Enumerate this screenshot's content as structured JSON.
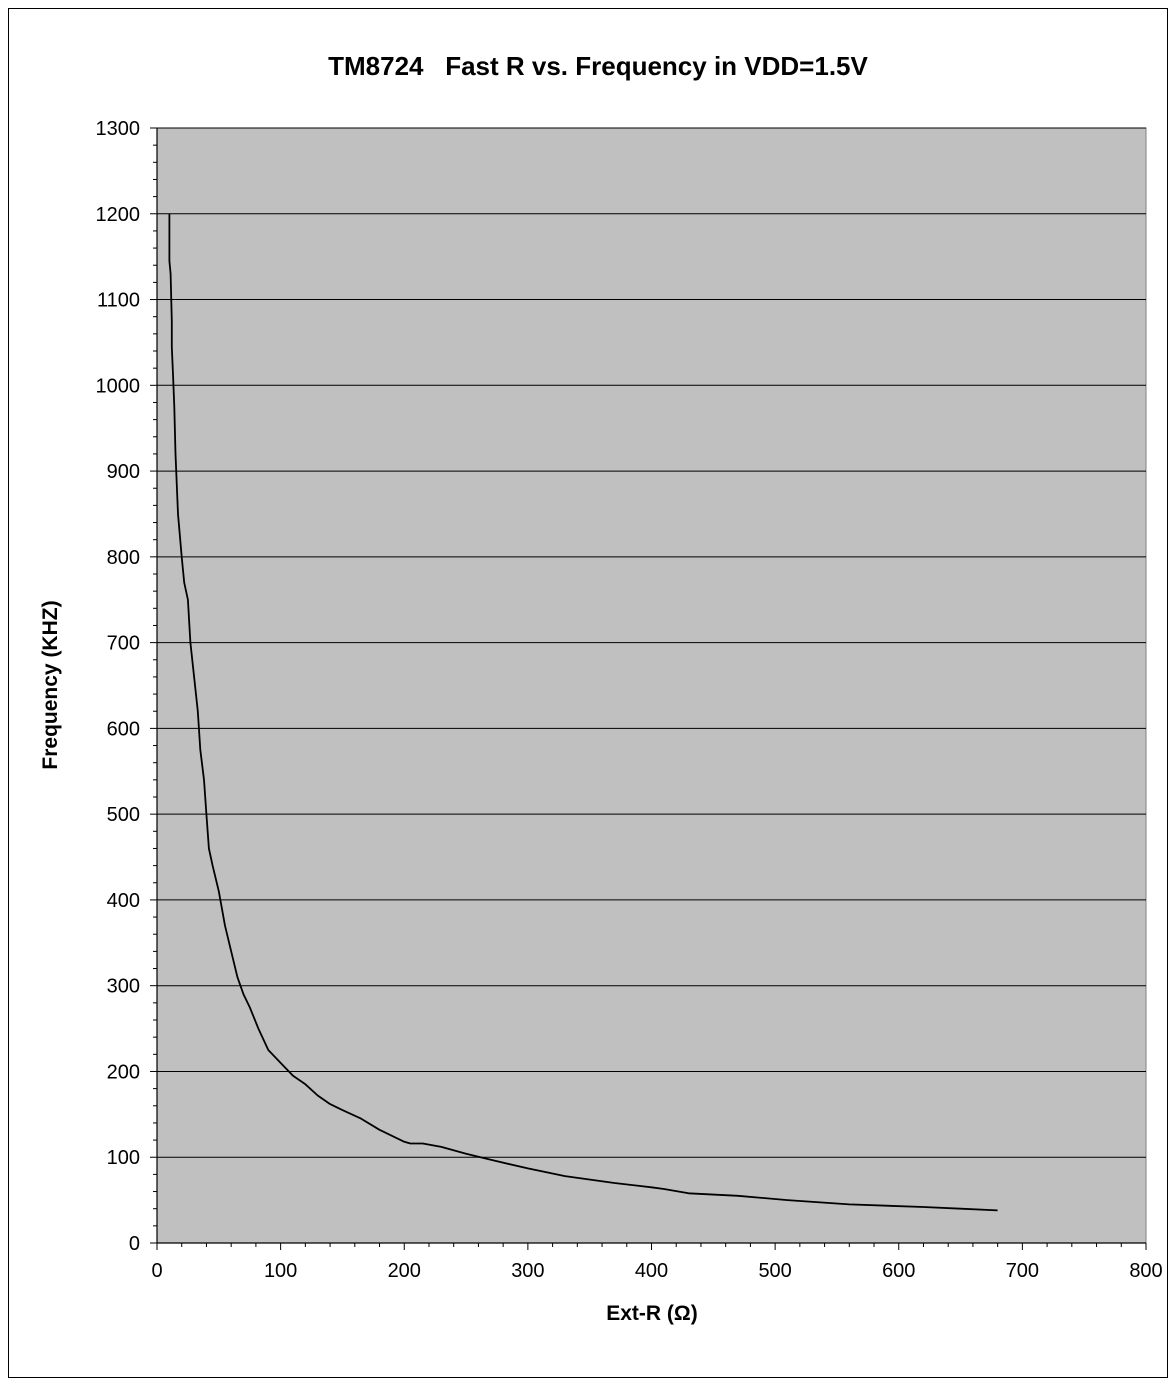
{
  "chart_data": {
    "type": "line",
    "title": "TM8724   Fast R vs. Frequency in VDD=1.5V",
    "xlabel": "Ext-R (Ω)",
    "ylabel": "Frequency (KHZ)",
    "xlim": [
      0,
      800
    ],
    "ylim": [
      0,
      1300
    ],
    "x_ticks": [
      0,
      100,
      200,
      300,
      400,
      500,
      600,
      700,
      800
    ],
    "y_ticks": [
      0,
      100,
      200,
      300,
      400,
      500,
      600,
      700,
      800,
      900,
      1000,
      1100,
      1200,
      1300
    ],
    "grid": "horizontal",
    "legend": "none",
    "colors": {
      "plot_background": "#c0c0c0",
      "line": "#000000",
      "gridline": "#000000"
    },
    "series": [
      {
        "x": [
          10,
          10,
          11,
          12,
          12,
          13,
          14,
          15,
          17,
          20,
          22,
          25,
          27,
          30,
          33,
          35,
          38,
          40,
          42,
          45,
          50,
          55,
          60,
          65,
          70,
          75,
          82,
          90,
          100,
          110,
          120,
          130,
          140,
          150,
          165,
          180,
          190,
          200,
          205,
          215,
          230,
          250,
          270,
          300,
          330,
          370,
          400,
          410,
          430,
          470,
          510,
          560,
          620,
          650,
          680
        ],
        "y": [
          1200,
          1145,
          1130,
          1075,
          1045,
          1010,
          975,
          920,
          850,
          800,
          770,
          750,
          700,
          660,
          620,
          575,
          540,
          500,
          460,
          440,
          410,
          370,
          340,
          310,
          290,
          275,
          250,
          225,
          210,
          195,
          185,
          172,
          162,
          155,
          145,
          132,
          125,
          118,
          116,
          116,
          112,
          104,
          97,
          87,
          78,
          70,
          65,
          63,
          58,
          55,
          50,
          45,
          42,
          40,
          38
        ]
      }
    ]
  }
}
